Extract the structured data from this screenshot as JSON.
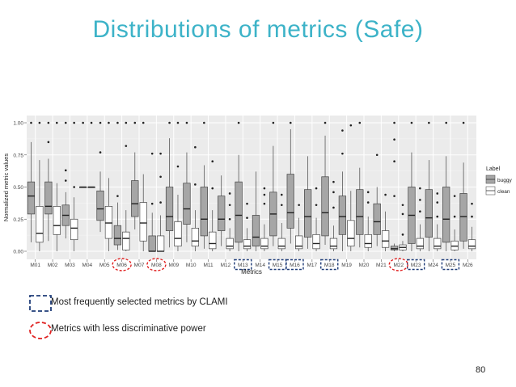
{
  "slide": {
    "title": "Distributions of metrics (Safe)",
    "page_number": "80"
  },
  "legend_notes": {
    "blue_label": "Most frequently selected metrics by CLAMI",
    "red_label": "Metrics with less discriminative power"
  },
  "colors": {
    "title": "#3db3c8",
    "blue_box": "#1f3c78",
    "red_ellipse": "#e02020",
    "buggy_fill": "#a6a6a6",
    "clean_fill": "#ffffff",
    "panel_bg": "#ebebeb"
  },
  "chart_data": {
    "type": "boxplot",
    "xlabel": "Metrics",
    "ylabel": "Normalized metric values",
    "ylim": [
      0,
      1
    ],
    "yticks": [
      "0.00",
      "0.25",
      "0.50",
      "0.75",
      "1.00"
    ],
    "legend_title": "Label",
    "legend_entries": [
      "buggy",
      "clean"
    ],
    "highlighted_blue": [
      "M13",
      "M15",
      "M16",
      "M18",
      "M23",
      "M25"
    ],
    "highlighted_red": [
      "M06",
      "M08",
      "M22"
    ],
    "categories": [
      "M01",
      "M02",
      "M03",
      "M04",
      "M05",
      "M06",
      "M07",
      "M08",
      "M09",
      "M10",
      "M11",
      "M12",
      "M13",
      "M14",
      "M15",
      "M16",
      "M17",
      "M18",
      "M19",
      "M20",
      "M21",
      "M22",
      "M23",
      "M24",
      "M25",
      "M26"
    ],
    "series": [
      {
        "name": "buggy",
        "boxes": [
          {
            "whislo": 0.07,
            "q1": 0.29,
            "med": 0.43,
            "q3": 0.54,
            "whishi": 0.85,
            "outliers": [
              1.0
            ]
          },
          {
            "whislo": 0.08,
            "q1": 0.29,
            "med": 0.35,
            "q3": 0.54,
            "whishi": 0.72,
            "outliers": [
              0.85,
              1.0
            ]
          },
          {
            "whislo": 0.1,
            "q1": 0.2,
            "med": 0.28,
            "q3": 0.36,
            "whishi": 0.46,
            "outliers": [
              0.55,
              0.63,
              1.0
            ]
          },
          {
            "whislo": 0.5,
            "q1": 0.5,
            "med": 0.5,
            "q3": 0.5,
            "whishi": 0.5,
            "outliers": [
              1.0
            ]
          },
          {
            "whislo": 0.15,
            "q1": 0.24,
            "med": 0.33,
            "q3": 0.47,
            "whishi": 0.62,
            "outliers": [
              0.77,
              1.0
            ]
          },
          {
            "whislo": 0.01,
            "q1": 0.05,
            "med": 0.1,
            "q3": 0.2,
            "whishi": 0.38,
            "outliers": [
              0.43,
              1.0
            ]
          },
          {
            "whislo": 0.17,
            "q1": 0.27,
            "med": 0.37,
            "q3": 0.55,
            "whishi": 0.77,
            "outliers": [
              1.0
            ]
          },
          {
            "whislo": 0.0,
            "q1": 0.0,
            "med": 0.0,
            "q3": 0.12,
            "whishi": 0.3,
            "outliers": [
              0.37,
              0.76
            ]
          },
          {
            "whislo": 0.03,
            "q1": 0.16,
            "med": 0.27,
            "q3": 0.5,
            "whishi": 0.88,
            "outliers": [
              1.0
            ]
          },
          {
            "whislo": 0.07,
            "q1": 0.21,
            "med": 0.33,
            "q3": 0.53,
            "whishi": 0.77,
            "outliers": [
              1.0
            ]
          },
          {
            "whislo": 0.02,
            "q1": 0.12,
            "med": 0.25,
            "q3": 0.5,
            "whishi": 0.67,
            "outliers": [
              1.0
            ]
          },
          {
            "whislo": 0.04,
            "q1": 0.16,
            "med": 0.25,
            "q3": 0.43,
            "whishi": 0.59,
            "outliers": []
          },
          {
            "whislo": 0.0,
            "q1": 0.07,
            "med": 0.28,
            "q3": 0.54,
            "whishi": 0.75,
            "outliers": [
              1.0
            ]
          },
          {
            "whislo": 0.0,
            "q1": 0.04,
            "med": 0.11,
            "q3": 0.28,
            "whishi": 0.62,
            "outliers": []
          },
          {
            "whislo": 0.04,
            "q1": 0.12,
            "med": 0.29,
            "q3": 0.46,
            "whishi": 0.82,
            "outliers": [
              1.0
            ]
          },
          {
            "whislo": 0.06,
            "q1": 0.18,
            "med": 0.3,
            "q3": 0.6,
            "whishi": 0.95,
            "outliers": [
              1.0
            ]
          },
          {
            "whislo": 0.02,
            "q1": 0.11,
            "med": 0.27,
            "q3": 0.48,
            "whishi": 0.74,
            "outliers": []
          },
          {
            "whislo": 0.05,
            "q1": 0.12,
            "med": 0.3,
            "q3": 0.58,
            "whishi": 0.9,
            "outliers": [
              1.0
            ]
          },
          {
            "whislo": 0.0,
            "q1": 0.13,
            "med": 0.27,
            "q3": 0.43,
            "whishi": 0.62,
            "outliers": [
              0.76,
              0.94
            ]
          },
          {
            "whislo": 0.03,
            "q1": 0.13,
            "med": 0.27,
            "q3": 0.48,
            "whishi": 0.65,
            "outliers": [
              1.0
            ]
          },
          {
            "whislo": 0.04,
            "q1": 0.13,
            "med": 0.23,
            "q3": 0.37,
            "whishi": 0.5,
            "outliers": [
              0.75
            ]
          },
          {
            "whislo": 0.0,
            "q1": 0.01,
            "med": 0.02,
            "q3": 0.04,
            "whishi": 0.06,
            "outliers": [
              0.43,
              0.7,
              0.87,
              1.0
            ]
          },
          {
            "whislo": 0.0,
            "q1": 0.06,
            "med": 0.28,
            "q3": 0.5,
            "whishi": 0.77,
            "outliers": [
              1.0
            ]
          },
          {
            "whislo": 0.0,
            "q1": 0.11,
            "med": 0.26,
            "q3": 0.48,
            "whishi": 0.71,
            "outliers": [
              1.0
            ]
          },
          {
            "whislo": 0.0,
            "q1": 0.07,
            "med": 0.25,
            "q3": 0.5,
            "whishi": 0.74,
            "outliers": [
              1.0
            ]
          },
          {
            "whislo": 0.02,
            "q1": 0.08,
            "med": 0.27,
            "q3": 0.45,
            "whishi": 0.69,
            "outliers": [
              1.0
            ]
          }
        ]
      },
      {
        "name": "clean",
        "boxes": [
          {
            "whislo": 0.0,
            "q1": 0.07,
            "med": 0.14,
            "q3": 0.35,
            "whishi": 0.71,
            "outliers": [
              1.0
            ]
          },
          {
            "whislo": 0.0,
            "q1": 0.13,
            "med": 0.2,
            "q3": 0.35,
            "whishi": 0.53,
            "outliers": [
              1.0
            ]
          },
          {
            "whislo": 0.0,
            "q1": 0.09,
            "med": 0.18,
            "q3": 0.25,
            "whishi": 0.42,
            "outliers": [
              0.5,
              1.0
            ]
          },
          {
            "whislo": 0.5,
            "q1": 0.5,
            "med": 0.5,
            "q3": 0.5,
            "whishi": 0.5,
            "outliers": [
              1.0
            ]
          },
          {
            "whislo": 0.0,
            "q1": 0.1,
            "med": 0.22,
            "q3": 0.35,
            "whishi": 0.57,
            "outliers": [
              1.0
            ]
          },
          {
            "whislo": 0.0,
            "q1": 0.01,
            "med": 0.1,
            "q3": 0.15,
            "whishi": 0.32,
            "outliers": [
              0.82,
              1.0
            ]
          },
          {
            "whislo": 0.0,
            "q1": 0.08,
            "med": 0.22,
            "q3": 0.38,
            "whishi": 0.6,
            "outliers": [
              1.0
            ]
          },
          {
            "whislo": 0.0,
            "q1": 0.0,
            "med": 0.0,
            "q3": 0.12,
            "whishi": 0.28,
            "outliers": [
              0.38,
              0.58,
              0.76
            ]
          },
          {
            "whislo": 0.0,
            "q1": 0.04,
            "med": 0.1,
            "q3": 0.23,
            "whishi": 0.44,
            "outliers": [
              0.66,
              1.0
            ]
          },
          {
            "whislo": 0.0,
            "q1": 0.04,
            "med": 0.08,
            "q3": 0.18,
            "whishi": 0.32,
            "outliers": [
              0.52,
              0.81
            ]
          },
          {
            "whislo": 0.0,
            "q1": 0.02,
            "med": 0.06,
            "q3": 0.15,
            "whishi": 0.32,
            "outliers": [
              0.49,
              0.7
            ]
          },
          {
            "whislo": 0.0,
            "q1": 0.02,
            "med": 0.04,
            "q3": 0.1,
            "whishi": 0.18,
            "outliers": [
              0.25,
              0.36,
              0.45
            ]
          },
          {
            "whislo": 0.0,
            "q1": 0.02,
            "med": 0.04,
            "q3": 0.09,
            "whishi": 0.18,
            "outliers": [
              0.26,
              0.37
            ]
          },
          {
            "whislo": 0.0,
            "q1": 0.02,
            "med": 0.04,
            "q3": 0.1,
            "whishi": 0.21,
            "outliers": [
              0.37,
              0.44,
              0.49
            ]
          },
          {
            "whislo": 0.0,
            "q1": 0.02,
            "med": 0.04,
            "q3": 0.1,
            "whishi": 0.22,
            "outliers": [
              0.36,
              0.44
            ]
          },
          {
            "whislo": 0.0,
            "q1": 0.02,
            "med": 0.04,
            "q3": 0.12,
            "whishi": 0.26,
            "outliers": [
              0.36
            ]
          },
          {
            "whislo": 0.0,
            "q1": 0.02,
            "med": 0.06,
            "q3": 0.13,
            "whishi": 0.26,
            "outliers": [
              0.36,
              0.49
            ]
          },
          {
            "whislo": 0.0,
            "q1": 0.02,
            "med": 0.04,
            "q3": 0.1,
            "whishi": 0.2,
            "outliers": [
              0.34,
              0.46,
              0.54
            ]
          },
          {
            "whislo": 0.0,
            "q1": 0.04,
            "med": 0.1,
            "q3": 0.24,
            "whishi": 0.47,
            "outliers": [
              0.98
            ]
          },
          {
            "whislo": 0.0,
            "q1": 0.03,
            "med": 0.06,
            "q3": 0.13,
            "whishi": 0.27,
            "outliers": [
              0.38,
              0.46
            ]
          },
          {
            "whislo": 0.0,
            "q1": 0.03,
            "med": 0.08,
            "q3": 0.16,
            "whishi": 0.31,
            "outliers": [
              0.44
            ]
          },
          {
            "whislo": 0.0,
            "q1": 0.01,
            "med": 0.03,
            "q3": 0.05,
            "whishi": 0.08,
            "outliers": [
              0.13,
              0.29,
              0.36
            ]
          },
          {
            "whislo": 0.0,
            "q1": 0.02,
            "med": 0.04,
            "q3": 0.1,
            "whishi": 0.21,
            "outliers": [
              0.31,
              0.4,
              0.49
            ]
          },
          {
            "whislo": 0.0,
            "q1": 0.02,
            "med": 0.04,
            "q3": 0.1,
            "whishi": 0.21,
            "outliers": [
              0.27,
              0.38,
              0.45
            ]
          },
          {
            "whislo": 0.0,
            "q1": 0.01,
            "med": 0.04,
            "q3": 0.08,
            "whishi": 0.17,
            "outliers": [
              0.27,
              0.43
            ]
          },
          {
            "whislo": 0.0,
            "q1": 0.02,
            "med": 0.04,
            "q3": 0.09,
            "whishi": 0.19,
            "outliers": [
              0.27,
              0.37
            ]
          }
        ]
      }
    ]
  }
}
